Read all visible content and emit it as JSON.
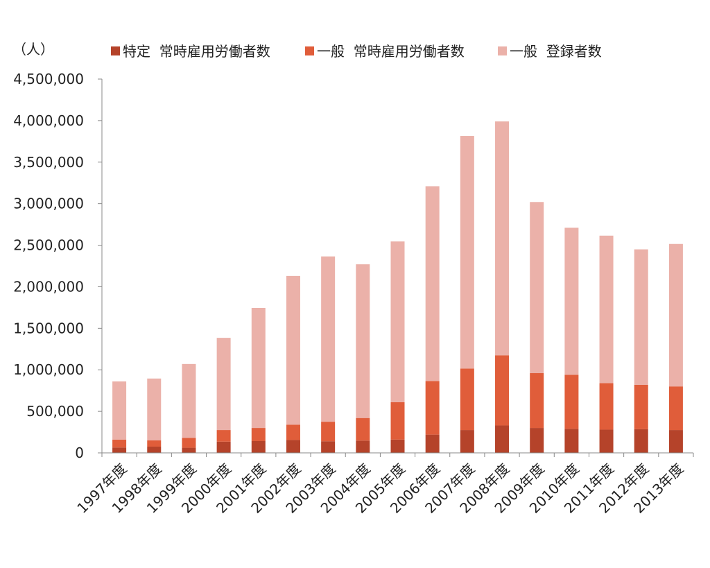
{
  "chart_data": {
    "type": "bar",
    "stacked": true,
    "unit_label": "（人）",
    "categories": [
      "1997年度",
      "1998年度",
      "1999年度",
      "2000年度",
      "2001年度",
      "2002年度",
      "2003年度",
      "2004年度",
      "2005年度",
      "2006年度",
      "2007年度",
      "2008年度",
      "2009年度",
      "2010年度",
      "2011年度",
      "2012年度",
      "2013年度"
    ],
    "series": [
      {
        "name": "特定  常時雇用労働者数",
        "color": "#B5432A",
        "values": [
          65000,
          75000,
          62000,
          135000,
          142000,
          155000,
          140000,
          148000,
          160000,
          220000,
          275000,
          330000,
          300000,
          290000,
          280000,
          285000,
          275000
        ]
      },
      {
        "name": "一般  常時雇用労働者数",
        "color": "#E05D3A",
        "values": [
          95000,
          75000,
          118000,
          140000,
          158000,
          185000,
          235000,
          272000,
          450000,
          645000,
          740000,
          845000,
          660000,
          650000,
          560000,
          535000,
          525000
        ]
      },
      {
        "name": "一般  登録者数",
        "color": "#EBB1A9",
        "values": [
          700000,
          745000,
          890000,
          1110000,
          1445000,
          1790000,
          1990000,
          1850000,
          1935000,
          2345000,
          2800000,
          2815000,
          2060000,
          1770000,
          1775000,
          1630000,
          1715000
        ]
      }
    ],
    "ylim": [
      0,
      4500000
    ],
    "yticks": [
      "0",
      "500,000",
      "1,000,000",
      "1,500,000",
      "2,000,000",
      "2,500,000",
      "3,000,000",
      "3,500,000",
      "4,000,000",
      "4,500,000"
    ],
    "ytick_values": [
      0,
      500000,
      1000000,
      1500000,
      2000000,
      2500000,
      3000000,
      3500000,
      4000000,
      4500000
    ],
    "legend_position": "top",
    "grid": false
  }
}
